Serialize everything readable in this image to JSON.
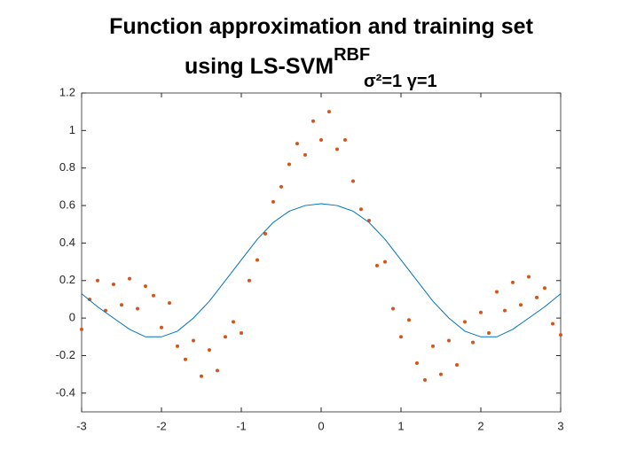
{
  "chart_data": {
    "type": "scatter",
    "title": [
      "Function approximation and training set",
      "using LS-SVM"
    ],
    "title_superscript": "RBF",
    "title_subscript": "σ²=1 γ=1",
    "xlim": [
      -3,
      3
    ],
    "xticks": [
      -3,
      -2,
      -1,
      0,
      1,
      2,
      3
    ],
    "ylim": [
      -0.5,
      1.2
    ],
    "yticks": [
      -0.4,
      -0.2,
      0,
      0.2,
      0.4,
      0.6,
      0.8,
      1,
      1.2
    ],
    "series": [
      {
        "type": "scatter",
        "color": "#d95319",
        "x": [
          -3.0,
          -2.9,
          -2.8,
          -2.7,
          -2.6,
          -2.5,
          -2.4,
          -2.3,
          -2.2,
          -2.1,
          -2.0,
          -1.9,
          -1.8,
          -1.7,
          -1.6,
          -1.5,
          -1.4,
          -1.3,
          -1.2,
          -1.1,
          -1.0,
          -0.9,
          -0.8,
          -0.7,
          -0.6,
          -0.5,
          -0.4,
          -0.3,
          -0.2,
          -0.1,
          0,
          0.1,
          0.2,
          0.3,
          0.4,
          0.5,
          0.6,
          0.7,
          0.8,
          0.9,
          1.0,
          1.1,
          1.2,
          1.3,
          1.4,
          1.5,
          1.6,
          1.7,
          1.8,
          1.9,
          2.0,
          2.1,
          2.2,
          2.3,
          2.4,
          2.5,
          2.6,
          2.7,
          2.8,
          2.9,
          3.0
        ],
        "values": [
          -0.06,
          0.1,
          0.2,
          0.04,
          0.18,
          0.07,
          0.21,
          0.05,
          0.17,
          0.12,
          -0.05,
          0.08,
          -0.15,
          -0.22,
          -0.12,
          -0.31,
          -0.17,
          -0.28,
          -0.1,
          -0.02,
          -0.08,
          0.2,
          0.31,
          0.45,
          0.62,
          0.7,
          0.82,
          0.93,
          0.87,
          1.05,
          0.95,
          1.1,
          0.9,
          0.95,
          0.73,
          0.58,
          0.52,
          0.28,
          0.3,
          0.05,
          -0.1,
          -0.01,
          -0.24,
          -0.33,
          -0.15,
          -0.3,
          -0.12,
          -0.25,
          -0.02,
          -0.13,
          0.03,
          -0.08,
          0.14,
          0.04,
          0.19,
          0.07,
          0.22,
          0.11,
          0.16,
          -0.03,
          -0.09
        ]
      },
      {
        "type": "line",
        "color": "#0072bd",
        "x": [
          -3.0,
          -2.8,
          -2.6,
          -2.4,
          -2.2,
          -2.0,
          -1.8,
          -1.6,
          -1.4,
          -1.2,
          -1.0,
          -0.8,
          -0.6,
          -0.4,
          -0.2,
          0,
          0.2,
          0.4,
          0.6,
          0.8,
          1.0,
          1.2,
          1.4,
          1.6,
          1.8,
          2.0,
          2.2,
          2.4,
          2.6,
          2.8,
          3.0
        ],
        "values": [
          0.13,
          0.06,
          0.0,
          -0.06,
          -0.1,
          -0.1,
          -0.07,
          0.0,
          0.09,
          0.2,
          0.31,
          0.42,
          0.51,
          0.57,
          0.6,
          0.61,
          0.6,
          0.57,
          0.51,
          0.42,
          0.31,
          0.2,
          0.09,
          0.0,
          -0.07,
          -0.1,
          -0.1,
          -0.06,
          0.0,
          0.06,
          0.13
        ]
      }
    ]
  }
}
